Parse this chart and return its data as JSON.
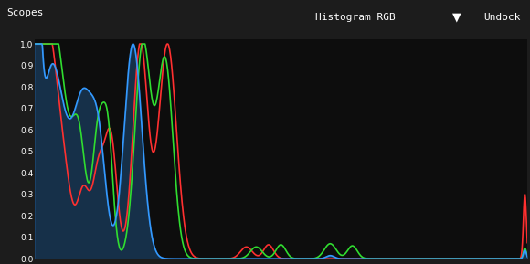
{
  "title": "Histogram RGB",
  "ylabel_text": "Scopes",
  "background_color": "#1c1c1c",
  "plot_bg_color": "#0d0d0d",
  "header_bg": "#252525",
  "btn_color": "#3a6ea5",
  "yticks": [
    0.0,
    0.1,
    0.2,
    0.3,
    0.4,
    0.5,
    0.6,
    0.7,
    0.8,
    0.9,
    1.0
  ],
  "red_color": "#ff3030",
  "green_color": "#30dd30",
  "blue_color": "#3399ff",
  "blue_fill_color": "#3399ff",
  "line_width": 1.2,
  "fill_alpha": 0.25
}
